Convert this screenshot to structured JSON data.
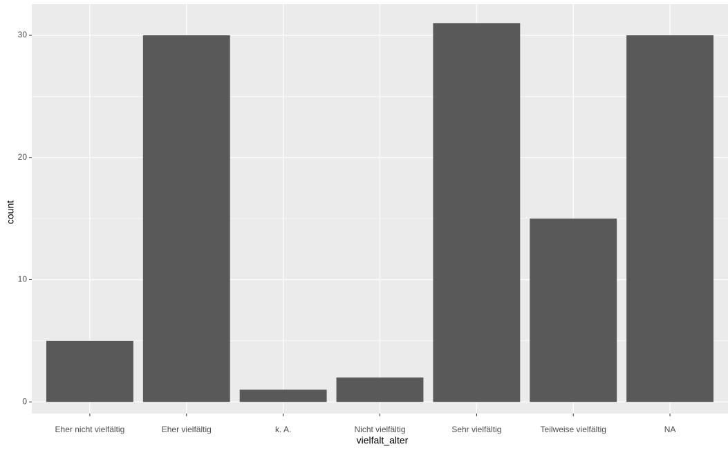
{
  "chart_data": {
    "type": "bar",
    "categories": [
      "Eher nicht vielfältig",
      "Eher vielfältig",
      "k. A.",
      "Nicht vielfältig",
      "Sehr vielfältig",
      "Teilweise vielfältig",
      "NA"
    ],
    "values": [
      5,
      30,
      1,
      2,
      31,
      15,
      30
    ],
    "color": "#595959",
    "x_label": "vielfalt_alter",
    "y_label": "count",
    "ylim": [
      -0.95,
      32.55
    ],
    "yticks": [
      0,
      10,
      20,
      30
    ],
    "minor_yticks": [
      5,
      15,
      25
    ],
    "grid": true
  }
}
